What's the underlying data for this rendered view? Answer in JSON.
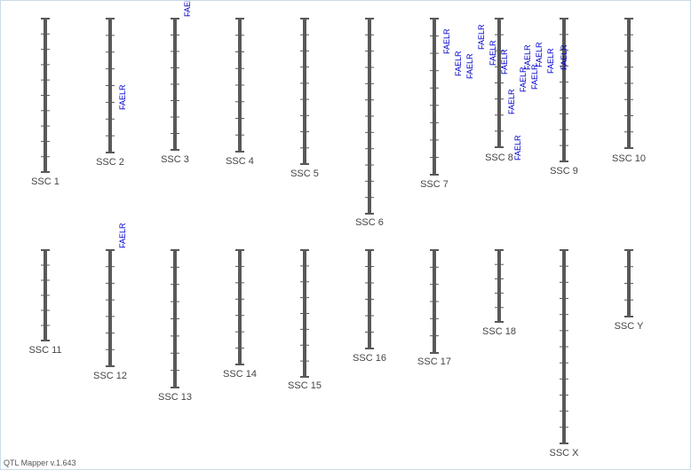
{
  "app": {
    "version_label": "QTL Mapper v.1.643"
  },
  "style": {
    "chromosome_color": "#595959",
    "tick_color": "#595959",
    "qtl_color": "#0000cc",
    "label_color": "#444444"
  },
  "chromosomes": [
    {
      "id": "1",
      "label": "SSC 1",
      "ticks": 9
    },
    {
      "id": "2",
      "label": "SSC 2",
      "ticks": 7
    },
    {
      "id": "3",
      "label": "SSC 3",
      "ticks": 7
    },
    {
      "id": "4",
      "label": "SSC 4",
      "ticks": 7
    },
    {
      "id": "5",
      "label": "SSC 5",
      "ticks": 8
    },
    {
      "id": "6",
      "label": "SSC 6",
      "ticks": 11
    },
    {
      "id": "7",
      "label": "SSC 7",
      "ticks": 8
    },
    {
      "id": "8",
      "label": "SSC 8",
      "ticks": 7
    },
    {
      "id": "9",
      "label": "SSC 9",
      "ticks": 8
    },
    {
      "id": "10",
      "label": "SSC 10",
      "ticks": 7
    },
    {
      "id": "11",
      "label": "SSC 11",
      "ticks": 5
    },
    {
      "id": "12",
      "label": "SSC 12",
      "ticks": 6
    },
    {
      "id": "13",
      "label": "SSC 13",
      "ticks": 7
    },
    {
      "id": "14",
      "label": "SSC 14",
      "ticks": 6
    },
    {
      "id": "15",
      "label": "SSC 15",
      "ticks": 7
    },
    {
      "id": "16",
      "label": "SSC 16",
      "ticks": 5
    },
    {
      "id": "17",
      "label": "SSC 17",
      "ticks": 5
    },
    {
      "id": "18",
      "label": "SSC 18",
      "ticks": 4
    },
    {
      "id": "X",
      "label": "SSC X",
      "ticks": 11
    },
    {
      "id": "Y",
      "label": "SSC Y",
      "ticks": 3
    }
  ],
  "qtls": [
    {
      "chromosome": "2",
      "label": "FAELR"
    },
    {
      "chromosome": "3",
      "label": "FAELR"
    },
    {
      "chromosome": "7",
      "label": "FAELR"
    },
    {
      "chromosome": "7",
      "label": "FAELR"
    },
    {
      "chromosome": "7",
      "label": "FAELR"
    },
    {
      "chromosome": "7",
      "label": "FAELR"
    },
    {
      "chromosome": "7",
      "label": "FAELR"
    },
    {
      "chromosome": "8",
      "label": "FAELR"
    },
    {
      "chromosome": "8",
      "label": "FAELR"
    },
    {
      "chromosome": "8",
      "label": "FAELR"
    },
    {
      "chromosome": "8",
      "label": "FAELR"
    },
    {
      "chromosome": "8",
      "label": "FAELR"
    },
    {
      "chromosome": "8",
      "label": "FAELR"
    },
    {
      "chromosome": "8",
      "label": "FAELR"
    },
    {
      "chromosome": "8",
      "label": "FAELR"
    },
    {
      "chromosome": "9",
      "label": "FAELR"
    },
    {
      "chromosome": "12",
      "label": "FAELR"
    }
  ]
}
